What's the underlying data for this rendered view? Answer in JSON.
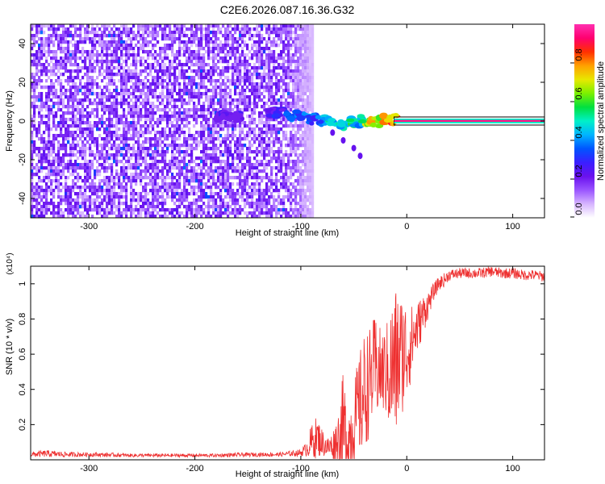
{
  "figure_title": "C2E6.2026.087.16.36.G32",
  "chart_data": [
    {
      "type": "heatmap",
      "title": "C2E6.2026.087.16.36.G32",
      "xlabel": "Height of straight line (km)",
      "ylabel": "Frequency (Hz)",
      "xlim": [
        -355,
        130
      ],
      "ylim": [
        -50,
        50
      ],
      "xticks": [
        -300,
        -200,
        -100,
        0,
        100
      ],
      "xtick_labels": [
        "-300",
        "-200",
        "-100",
        "0",
        "100"
      ],
      "yticks": [
        -40,
        -20,
        0,
        20,
        40
      ],
      "ytick_labels": [
        "-40",
        "-20",
        "0",
        "20",
        "40"
      ],
      "colorbar": {
        "label": "Normalized spectral amplitude",
        "range": [
          0,
          1
        ],
        "ticks": [
          0,
          0.2,
          0.4,
          0.6,
          0.8
        ],
        "tick_labels": [
          "0.0",
          "0.2",
          "0.4",
          "0.6",
          "0.8"
        ],
        "colormap": [
          "#ffffff",
          "#d7b5ff",
          "#9a55ff",
          "#6a11ee",
          "#3a1fff",
          "#0055ff",
          "#00b4ff",
          "#00f0c8",
          "#00e040",
          "#7cf000",
          "#e8e800",
          "#ffa000",
          "#ff3000",
          "#ff0070",
          "#ff30b0"
        ]
      },
      "noise_region_km": [
        -355,
        -97
      ],
      "signal_band": {
        "points": [
          {
            "x": -178,
            "y": 2,
            "v": 0.3
          },
          {
            "x": -170,
            "y": 3,
            "v": 0.25
          },
          {
            "x": -160,
            "y": 2,
            "v": 0.28
          },
          {
            "x": -128,
            "y": 4,
            "v": 0.28
          },
          {
            "x": -120,
            "y": 4,
            "v": 0.35
          },
          {
            "x": -110,
            "y": 3,
            "v": 0.4
          },
          {
            "x": -100,
            "y": 3,
            "v": 0.45
          },
          {
            "x": -90,
            "y": 1,
            "v": 0.45
          },
          {
            "x": -80,
            "y": 0,
            "v": 0.5
          },
          {
            "x": -70,
            "y": -1,
            "v": 0.55
          },
          {
            "x": -60,
            "y": -2,
            "v": 0.55
          },
          {
            "x": -52,
            "y": 0,
            "v": 0.6
          },
          {
            "x": -45,
            "y": 0,
            "v": 0.55
          },
          {
            "x": -38,
            "y": 0,
            "v": 0.75
          },
          {
            "x": -30,
            "y": 0,
            "v": 0.8
          },
          {
            "x": -20,
            "y": 1,
            "v": 0.85
          },
          {
            "x": -14,
            "y": 1,
            "v": 0.9
          }
        ],
        "tail_points": [
          {
            "x": -70,
            "y": -6
          },
          {
            "x": -60,
            "y": -10
          },
          {
            "x": -50,
            "y": -14
          },
          {
            "x": -44,
            "y": -18
          }
        ],
        "line": {
          "x_start": -12,
          "x_end": 130,
          "y": 0,
          "value": 0.95
        }
      }
    },
    {
      "type": "line",
      "xlabel": "Height of straight line (km)",
      "ylabel": "SNR (10 * v/v)",
      "scale_label": "(x10⁴)",
      "color": "#ee3030",
      "xlim": [
        -355,
        130
      ],
      "ylim": [
        0,
        1.1
      ],
      "xticks": [
        -300,
        -200,
        -100,
        0,
        100
      ],
      "xtick_labels": [
        "-300",
        "-200",
        "-100",
        "0",
        "100"
      ],
      "yticks": [
        0.2,
        0.4,
        0.6,
        0.8,
        1.0
      ],
      "ytick_labels": [
        "0.2",
        "0.4",
        "0.6",
        "0.8",
        "1"
      ],
      "x": [
        -355,
        -340,
        -320,
        -300,
        -280,
        -260,
        -240,
        -220,
        -200,
        -180,
        -160,
        -140,
        -120,
        -110,
        -100,
        -95,
        -90,
        -85,
        -80,
        -75,
        -70,
        -65,
        -60,
        -55,
        -50,
        -45,
        -40,
        -35,
        -30,
        -25,
        -20,
        -15,
        -10,
        -5,
        0,
        5,
        10,
        15,
        20,
        25,
        30,
        35,
        40,
        50,
        60,
        70,
        80,
        90,
        100,
        110,
        120,
        130
      ],
      "values": [
        0.03,
        0.035,
        0.03,
        0.03,
        0.028,
        0.025,
        0.025,
        0.025,
        0.025,
        0.025,
        0.028,
        0.03,
        0.03,
        0.035,
        0.04,
        0.06,
        0.1,
        0.13,
        0.1,
        0.07,
        0.08,
        0.12,
        0.15,
        0.12,
        0.2,
        0.3,
        0.38,
        0.45,
        0.52,
        0.5,
        0.5,
        0.5,
        0.55,
        0.6,
        0.62,
        0.68,
        0.75,
        0.82,
        0.88,
        0.95,
        1.0,
        1.02,
        1.05,
        1.06,
        1.06,
        1.06,
        1.07,
        1.06,
        1.06,
        1.05,
        1.05,
        1.04
      ],
      "noise_amplitude": [
        0.015,
        0.02,
        0.015,
        0.012,
        0.012,
        0.01,
        0.01,
        0.01,
        0.01,
        0.01,
        0.012,
        0.012,
        0.012,
        0.015,
        0.02,
        0.04,
        0.1,
        0.12,
        0.08,
        0.06,
        0.08,
        0.15,
        0.35,
        0.2,
        0.25,
        0.3,
        0.35,
        0.3,
        0.3,
        0.25,
        0.25,
        0.4,
        0.45,
        0.35,
        0.3,
        0.2,
        0.15,
        0.12,
        0.08,
        0.05,
        0.04,
        0.04,
        0.03,
        0.03,
        0.03,
        0.03,
        0.03,
        0.03,
        0.03,
        0.03,
        0.03,
        0.03
      ]
    }
  ]
}
